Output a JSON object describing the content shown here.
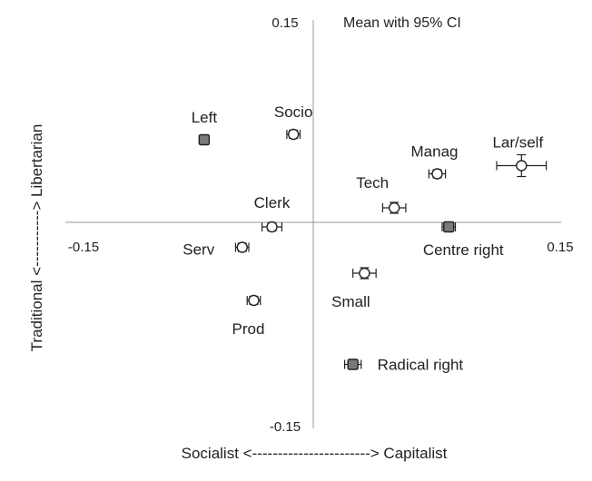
{
  "chart_data": {
    "type": "scatter",
    "title": "Mean with 95% CI",
    "xlabel": "Socialist <-----------------------> Capitalist",
    "ylabel": "Traditional <-----------> Libertarian",
    "xlim": [
      -0.15,
      0.15
    ],
    "ylim": [
      -0.15,
      0.15
    ],
    "x_tick_labels": [
      "-0.15",
      "0.15"
    ],
    "y_tick_labels": [
      "0.15",
      "-0.15"
    ],
    "grid": false,
    "points": [
      {
        "label": "Left",
        "x": -0.066,
        "y": 0.062,
        "x_err": 0.003,
        "y_err": 0.003,
        "marker": "square"
      },
      {
        "label": "Socio",
        "x": -0.012,
        "y": 0.066,
        "x_err": 0.004,
        "y_err": 0.003,
        "marker": "circle"
      },
      {
        "label": "Lar/self",
        "x": 0.126,
        "y": 0.043,
        "x_err": 0.015,
        "y_err": 0.008,
        "marker": "circle"
      },
      {
        "label": "Manag",
        "x": 0.075,
        "y": 0.037,
        "x_err": 0.005,
        "y_err": 0.003,
        "marker": "circle"
      },
      {
        "label": "Tech",
        "x": 0.049,
        "y": 0.012,
        "x_err": 0.007,
        "y_err": 0.004,
        "marker": "circle"
      },
      {
        "label": "Clerk",
        "x": -0.025,
        "y": -0.002,
        "x_err": 0.006,
        "y_err": 0.003,
        "marker": "circle"
      },
      {
        "label": "Centre right",
        "x": 0.082,
        "y": -0.002,
        "x_err": 0.004,
        "y_err": 0.003,
        "marker": "square"
      },
      {
        "label": "Serv",
        "x": -0.043,
        "y": -0.017,
        "x_err": 0.004,
        "y_err": 0.003,
        "marker": "circle"
      },
      {
        "label": "Small",
        "x": 0.031,
        "y": -0.036,
        "x_err": 0.007,
        "y_err": 0.004,
        "marker": "circle"
      },
      {
        "label": "Prod",
        "x": -0.036,
        "y": -0.056,
        "x_err": 0.004,
        "y_err": 0.003,
        "marker": "circle"
      },
      {
        "label": "Radical right",
        "x": 0.024,
        "y": -0.103,
        "x_err": 0.005,
        "y_err": 0.003,
        "marker": "square"
      }
    ]
  }
}
